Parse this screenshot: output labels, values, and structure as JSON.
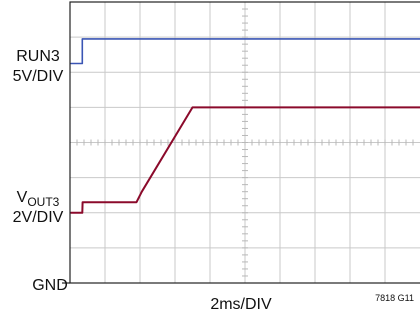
{
  "chart_data": {
    "type": "line",
    "title": "",
    "xlabel": "2ms/DIV",
    "ylabel": "",
    "x_unit": "ms",
    "x_divisions": 10,
    "y_divisions": 8,
    "xlim": [
      0,
      20
    ],
    "ylim": [
      0,
      8
    ],
    "grid": true,
    "labels": {
      "run3_name": "RUN3",
      "run3_scale": "5V/DIV",
      "vout3_main": "V",
      "vout3_sub": "OUT3",
      "vout3_scale": "2V/DIV",
      "gnd": "GND",
      "figure_id": "7818 G11"
    },
    "series": [
      {
        "name": "RUN3",
        "color": "#3a55b4",
        "x": [
          -0.5,
          0.7,
          0.7,
          20
        ],
        "y": [
          6.25,
          6.25,
          6.95,
          6.95
        ]
      },
      {
        "name": "VOUT3",
        "color": "#8b0a2b",
        "x": [
          -0.5,
          0.7,
          0.72,
          0.9,
          0.92,
          3.8,
          4.1,
          7.0,
          7.5,
          20
        ],
        "y": [
          2.0,
          2.0,
          2.3,
          2.3,
          2.3,
          2.3,
          2.6,
          5.0,
          5.0,
          5.0
        ]
      }
    ]
  }
}
